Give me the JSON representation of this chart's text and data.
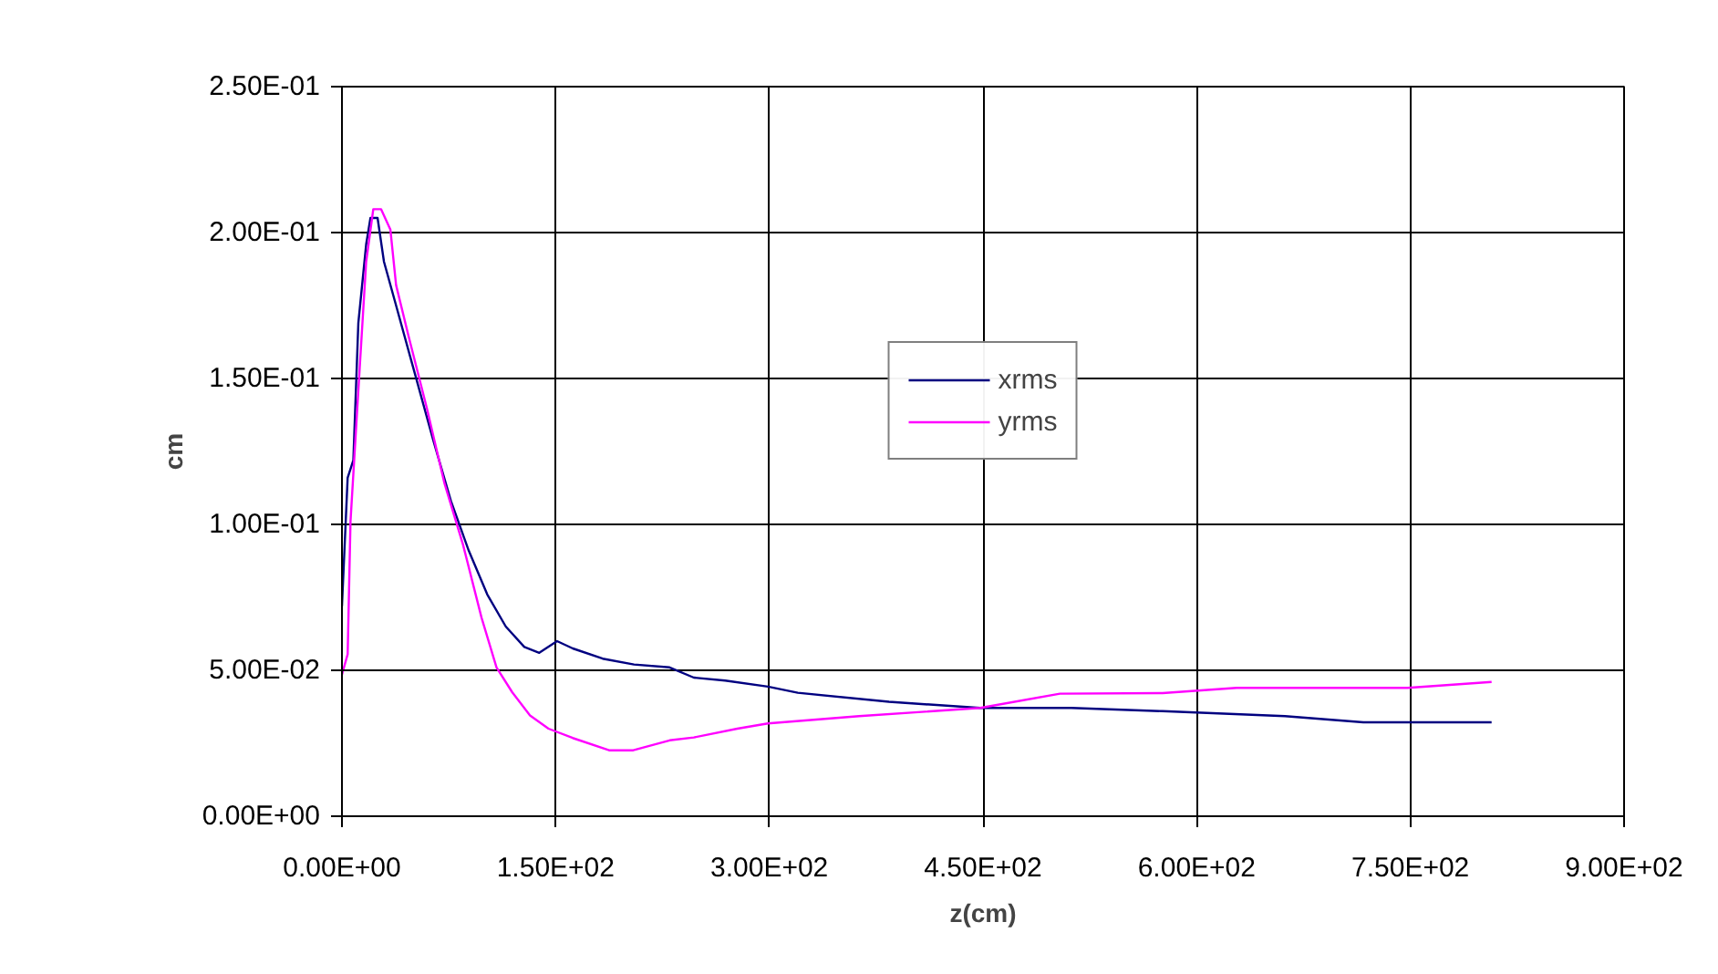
{
  "chart_data": {
    "type": "line",
    "xlabel": "z(cm)",
    "ylabel": "cm",
    "xlim": [
      0,
      900
    ],
    "ylim": [
      0,
      0.25
    ],
    "xticks": [
      {
        "value": 0,
        "label": "0.00E+00"
      },
      {
        "value": 150,
        "label": "1.50E+02"
      },
      {
        "value": 300,
        "label": "3.00E+02"
      },
      {
        "value": 450,
        "label": "4.50E+02"
      },
      {
        "value": 600,
        "label": "6.00E+02"
      },
      {
        "value": 750,
        "label": "7.50E+02"
      },
      {
        "value": 900,
        "label": "9.00E+02"
      }
    ],
    "yticks": [
      {
        "value": 0,
        "label": "0.00E+00"
      },
      {
        "value": 0.05,
        "label": "5.00E-02"
      },
      {
        "value": 0.1,
        "label": "1.00E-01"
      },
      {
        "value": 0.15,
        "label": "1.50E-01"
      },
      {
        "value": 0.2,
        "label": "2.00E-01"
      },
      {
        "value": 0.25,
        "label": "2.50E-01"
      }
    ],
    "grid": true,
    "legend": "top",
    "marker": "none",
    "line_style": "solid",
    "series": [
      {
        "name": "xrms",
        "color": "#000080",
        "x": [
          0,
          4,
          8,
          11.5,
          17,
          20,
          25,
          29.5,
          38,
          51,
          64,
          76.5,
          89,
          102,
          115,
          128,
          138.5,
          151,
          162,
          183,
          205,
          230,
          247,
          269,
          299,
          320,
          384,
          448,
          512,
          576,
          662,
          717,
          807
        ],
        "values": [
          0.072,
          0.116,
          0.122,
          0.169,
          0.196,
          0.205,
          0.205,
          0.19,
          0.175,
          0.152,
          0.129,
          0.108,
          0.091,
          0.076,
          0.065,
          0.058,
          0.056,
          0.06,
          0.0575,
          0.054,
          0.052,
          0.051,
          0.0475,
          0.0465,
          0.0444,
          0.0423,
          0.0392,
          0.0371,
          0.0371,
          0.036,
          0.0343,
          0.0322,
          0.0322
        ]
      },
      {
        "name": "yrms",
        "color": "#ff00ff",
        "x": [
          0,
          4,
          6,
          12.5,
          17,
          22,
          27.5,
          34,
          38,
          46.5,
          59.5,
          72,
          85,
          98,
          108.5,
          119.5,
          132,
          145,
          162,
          187.5,
          204.5,
          230,
          247,
          277.5,
          299,
          363,
          448,
          504,
          576,
          628,
          748,
          807
        ],
        "values": [
          0.0485,
          0.0555,
          0.101,
          0.154,
          0.19,
          0.208,
          0.208,
          0.201,
          0.182,
          0.165,
          0.14,
          0.114,
          0.093,
          0.068,
          0.051,
          0.0425,
          0.0345,
          0.03,
          0.0268,
          0.0226,
          0.0226,
          0.026,
          0.027,
          0.03,
          0.0318,
          0.0343,
          0.0371,
          0.042,
          0.0422,
          0.044,
          0.044,
          0.046
        ]
      }
    ]
  }
}
